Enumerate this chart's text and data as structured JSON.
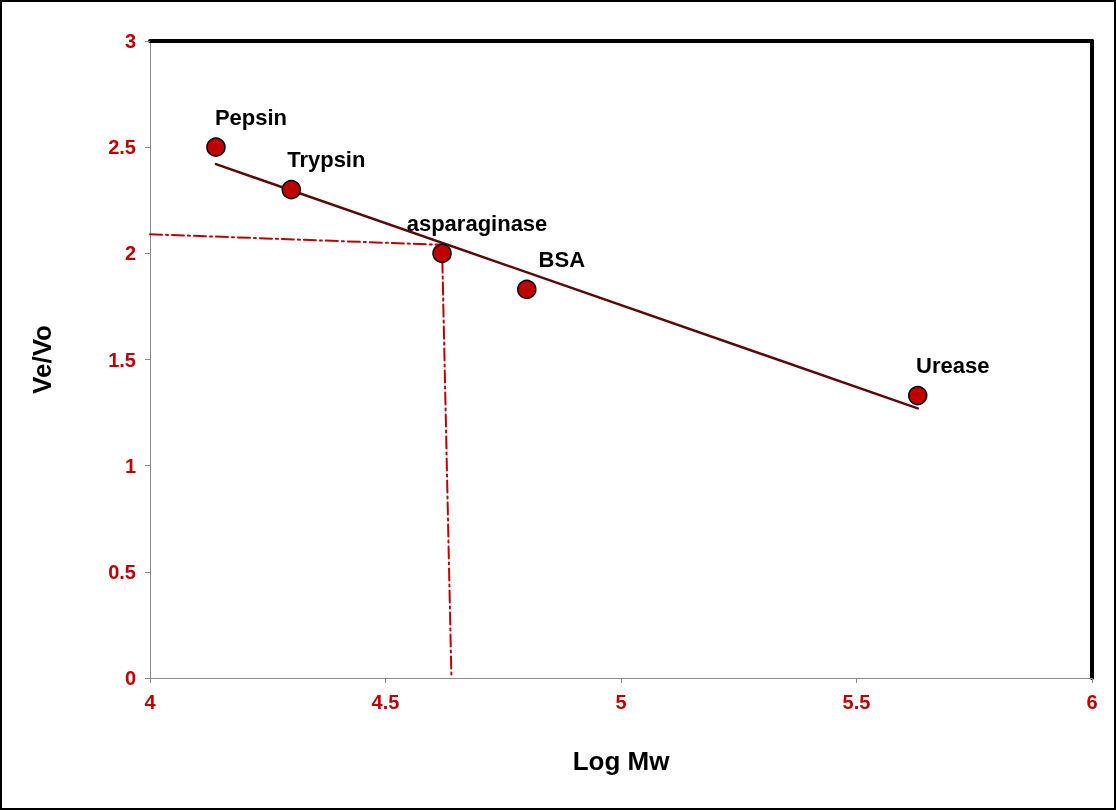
{
  "chart_data": {
    "type": "scatter",
    "xlabel": "Log Mw",
    "ylabel": "Ve/Vo",
    "xlim": [
      4,
      6
    ],
    "xticks": [
      4,
      4.5,
      5,
      5.5,
      6
    ],
    "ylim": [
      0,
      3
    ],
    "yticks": [
      0,
      0.5,
      1,
      1.5,
      2,
      2.5,
      3
    ],
    "grid": false,
    "series": [
      {
        "type": "line",
        "marker": "none",
        "color": "#5a0a0a",
        "x": [
          4.14,
          5.63
        ],
        "values": [
          2.42,
          1.27
        ]
      },
      {
        "type": "line",
        "marker": "none",
        "color": "#c00000",
        "line_style": "dashed",
        "x": [
          4,
          4.62,
          4.64
        ],
        "values": [
          2.09,
          2.04,
          0
        ]
      },
      {
        "marker": "circle",
        "color": "#c00000",
        "x": [
          4.14,
          4.3,
          4.62,
          4.8,
          5.63
        ],
        "values": [
          2.5,
          2.3,
          2.0,
          1.83,
          1.33
        ]
      }
    ],
    "annotations": [
      {
        "text": "Pepsin",
        "x": 4.14,
        "y": 2.5
      },
      {
        "text": "Trypsin",
        "x": 4.3,
        "y": 2.3
      },
      {
        "text": "asparaginase",
        "x": 4.62,
        "y": 2.0
      },
      {
        "text": "BSA",
        "x": 4.8,
        "y": 1.83
      },
      {
        "text": "Urease",
        "x": 5.63,
        "y": 1.33
      }
    ]
  }
}
